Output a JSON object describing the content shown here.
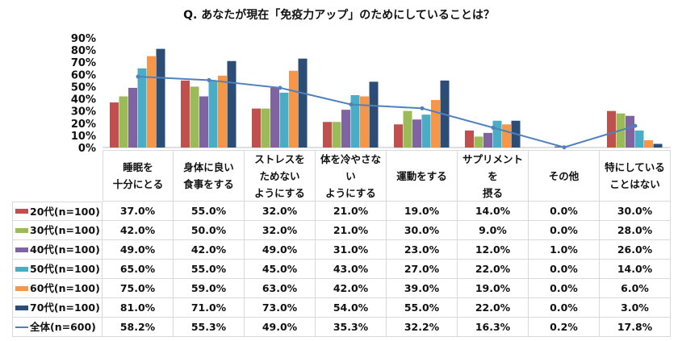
{
  "chart_data": {
    "type": "bar",
    "title": "Q. あなたが現在「免疫力アップ」のためにしていることは？",
    "categories": [
      "睡眠を\n十分にとる",
      "身体に良い\n食事をする",
      "ストレスを\nためない\nようにする",
      "体を冷やさない\nようにする",
      "運動をする",
      "サプリメントを\n摂る",
      "その他",
      "特にしている\nことはない"
    ],
    "ylim": [
      0,
      90
    ],
    "yticks": [
      0,
      10,
      20,
      30,
      40,
      50,
      60,
      70,
      80,
      90
    ],
    "ytick_format": "%",
    "grid": false,
    "legend_placement": "table-left",
    "series": [
      {
        "name": "20代(n=100)",
        "type": "bar",
        "color": "#C0504D",
        "values": [
          37,
          55,
          32,
          21,
          19,
          14,
          0,
          30
        ],
        "labels": [
          "37.0%",
          "55.0%",
          "32.0%",
          "21.0%",
          "19.0%",
          "14.0%",
          "0.0%",
          "30.0%"
        ]
      },
      {
        "name": "30代(n=100)",
        "type": "bar",
        "color": "#9BBB59",
        "values": [
          42,
          50,
          32,
          21,
          30,
          9,
          0,
          28
        ],
        "labels": [
          "42.0%",
          "50.0%",
          "32.0%",
          "21.0%",
          "30.0%",
          "9.0%",
          "0.0%",
          "28.0%"
        ]
      },
      {
        "name": "40代(n=100)",
        "type": "bar",
        "color": "#8064A2",
        "values": [
          49,
          42,
          49,
          31,
          23,
          12,
          1,
          26
        ],
        "labels": [
          "49.0%",
          "42.0%",
          "49.0%",
          "31.0%",
          "23.0%",
          "12.0%",
          "1.0%",
          "26.0%"
        ]
      },
      {
        "name": "50代(n=100)",
        "type": "bar",
        "color": "#4BACC6",
        "values": [
          65,
          55,
          45,
          43,
          27,
          22,
          0,
          14
        ],
        "labels": [
          "65.0%",
          "55.0%",
          "45.0%",
          "43.0%",
          "27.0%",
          "22.0%",
          "0.0%",
          "14.0%"
        ]
      },
      {
        "name": "60代(n=100)",
        "type": "bar",
        "color": "#F79646",
        "values": [
          75,
          59,
          63,
          42,
          39,
          19,
          0,
          6
        ],
        "labels": [
          "75.0%",
          "59.0%",
          "63.0%",
          "42.0%",
          "39.0%",
          "19.0%",
          "0.0%",
          "6.0%"
        ]
      },
      {
        "name": "70代(n=100)",
        "type": "bar",
        "color": "#2C4D75",
        "values": [
          81,
          71,
          73,
          54,
          55,
          22,
          0,
          3
        ],
        "labels": [
          "81.0%",
          "71.0%",
          "73.0%",
          "54.0%",
          "55.0%",
          "22.0%",
          "0.0%",
          "3.0%"
        ]
      },
      {
        "name": "全体(n=600)",
        "type": "line",
        "color": "#4F81BD",
        "values": [
          58.2,
          55.3,
          49.0,
          35.3,
          32.2,
          16.3,
          0.2,
          17.8
        ],
        "labels": [
          "58.2%",
          "55.3%",
          "49.0%",
          "35.3%",
          "32.2%",
          "16.3%",
          "0.2%",
          "17.8%"
        ]
      }
    ]
  }
}
